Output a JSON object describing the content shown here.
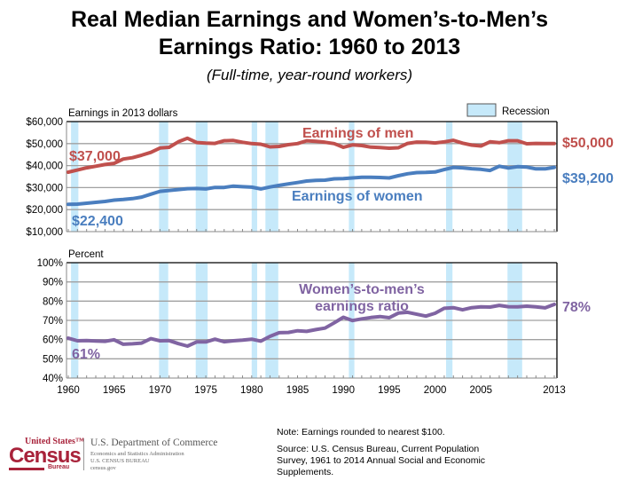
{
  "title_line1": "Real Median Earnings and Women’s-to-Men’s",
  "title_line2": "Earnings Ratio: 1960 to 2013",
  "subtitle": "(Full-time, year-round workers)",
  "colors": {
    "men": "#c0504d",
    "women": "#4a7ebf",
    "ratio": "#8064a2",
    "recession": "#c6e9fa",
    "grid": "#a0a0a0",
    "census_red": "#a8223a"
  },
  "legend": {
    "recession_label": "Recession"
  },
  "note": "Note: Earnings rounded to nearest $100.",
  "source": "Source: U.S. Census Bureau, Current Population Survey, 1961 to 2014 Annual Social and Economic Supplements.",
  "logo": {
    "united_states": "United States™",
    "census": "Census",
    "bureau": "Bureau",
    "dept": "U.S. Department of Commerce",
    "esa": "Economics and Statistics Administration",
    "ucb": "U.S. CENSUS BUREAU",
    "gov": "census.gov"
  },
  "chart_data": [
    {
      "type": "line",
      "title": "Earnings",
      "ylabel": "Earnings in 2013 dollars",
      "ylim": [
        10000,
        60000
      ],
      "yticks": [
        10000,
        20000,
        30000,
        40000,
        50000,
        60000
      ],
      "ytick_labels": [
        "$10,000",
        "$20,000",
        "$30,000",
        "$40,000",
        "$50,000",
        "$60,000"
      ],
      "grid": true,
      "x": [
        1960,
        1961,
        1962,
        1963,
        1964,
        1965,
        1966,
        1967,
        1968,
        1969,
        1970,
        1971,
        1972,
        1973,
        1974,
        1975,
        1976,
        1977,
        1978,
        1979,
        1980,
        1981,
        1982,
        1983,
        1984,
        1985,
        1986,
        1987,
        1988,
        1989,
        1990,
        1991,
        1992,
        1993,
        1994,
        1995,
        1996,
        1997,
        1998,
        1999,
        2000,
        2001,
        2002,
        2003,
        2004,
        2005,
        2006,
        2007,
        2008,
        2009,
        2010,
        2011,
        2012,
        2013
      ],
      "series": [
        {
          "name": "Earnings of men",
          "start_label": "$37,000",
          "end_label": "$50,000",
          "values": [
            37000,
            38000,
            39000,
            39700,
            40500,
            41000,
            43000,
            43600,
            44700,
            46000,
            48000,
            48300,
            50800,
            52400,
            50500,
            50200,
            50100,
            51300,
            51400,
            50600,
            50000,
            49700,
            48500,
            48700,
            49500,
            50000,
            51300,
            51000,
            50600,
            50000,
            48300,
            49400,
            49100,
            48400,
            48200,
            47900,
            48100,
            50100,
            50700,
            50600,
            50300,
            50800,
            51500,
            50200,
            49300,
            48900,
            50800,
            50400,
            51300,
            51300,
            49900,
            50100,
            50000,
            50000
          ]
        },
        {
          "name": "Earnings of women",
          "start_label": "$22,400",
          "end_label": "$39,200",
          "values": [
            22400,
            22500,
            22900,
            23300,
            23700,
            24300,
            24600,
            25000,
            25700,
            27000,
            28300,
            28700,
            29100,
            29500,
            29600,
            29400,
            30100,
            30100,
            30700,
            30400,
            30200,
            29400,
            30300,
            31000,
            31700,
            32300,
            33000,
            33300,
            33400,
            34000,
            34100,
            34400,
            34700,
            34700,
            34600,
            34400,
            35400,
            36300,
            36800,
            36900,
            37100,
            38200,
            39200,
            39000,
            38600,
            38300,
            37800,
            39700,
            38900,
            39500,
            39300,
            38500,
            38500,
            39200
          ]
        }
      ],
      "annotations": [
        "Earnings of men",
        "Earnings of women"
      ]
    },
    {
      "type": "line",
      "title": "Women’s-to-men’s earnings ratio",
      "ylabel": "Percent",
      "ylim": [
        40,
        100
      ],
      "yticks": [
        40,
        50,
        60,
        70,
        80,
        90,
        100
      ],
      "ytick_labels": [
        "40%",
        "50%",
        "60%",
        "70%",
        "80%",
        "90%",
        "100%"
      ],
      "xlim": [
        1960,
        2013
      ],
      "xticks": [
        1960,
        1965,
        1970,
        1975,
        1980,
        1985,
        1990,
        1995,
        2000,
        2005,
        2013
      ],
      "xtick_labels": [
        "1960",
        "1965",
        "1970",
        "1975",
        "1980",
        "1985",
        "1990",
        "1995",
        "2000",
        "2005",
        "2013"
      ],
      "grid": true,
      "x": [
        1960,
        1961,
        1962,
        1963,
        1964,
        1965,
        1966,
        1967,
        1968,
        1969,
        1970,
        1971,
        1972,
        1973,
        1974,
        1975,
        1976,
        1977,
        1978,
        1979,
        1980,
        1981,
        1982,
        1983,
        1984,
        1985,
        1986,
        1987,
        1988,
        1989,
        1990,
        1991,
        1992,
        1993,
        1994,
        1995,
        1996,
        1997,
        1998,
        1999,
        2000,
        2001,
        2002,
        2003,
        2004,
        2005,
        2006,
        2007,
        2008,
        2009,
        2010,
        2011,
        2012,
        2013
      ],
      "series": [
        {
          "name": "Women’s-to-men’s earnings ratio",
          "label_lines": [
            "Women’s-to-men’s",
            "earnings ratio"
          ],
          "start_label": "61%",
          "end_label": "78%",
          "values": [
            60.7,
            59.4,
            59.5,
            59.3,
            59.1,
            59.9,
            57.6,
            57.8,
            58.2,
            60.5,
            59.4,
            59.5,
            57.9,
            56.6,
            58.8,
            58.8,
            60.2,
            58.9,
            59.4,
            59.7,
            60.2,
            59.2,
            61.7,
            63.6,
            63.7,
            64.6,
            64.3,
            65.2,
            66.0,
            68.7,
            71.6,
            69.9,
            70.8,
            71.5,
            72.0,
            71.4,
            73.8,
            74.2,
            73.2,
            72.2,
            73.7,
            76.3,
            76.6,
            75.5,
            76.6,
            77.0,
            76.9,
            77.8,
            77.1,
            77.0,
            77.4,
            77.0,
            76.5,
            78.3
          ]
        }
      ]
    },
    {
      "type": "recession_bands",
      "legend": "Recession",
      "periods": [
        [
          1960.3,
          1961.1
        ],
        [
          1969.9,
          1970.9
        ],
        [
          1973.9,
          1975.2
        ],
        [
          1980.0,
          1980.6
        ],
        [
          1981.5,
          1982.9
        ],
        [
          1990.6,
          1991.2
        ],
        [
          2001.2,
          2001.9
        ],
        [
          2007.9,
          2009.5
        ]
      ]
    }
  ]
}
